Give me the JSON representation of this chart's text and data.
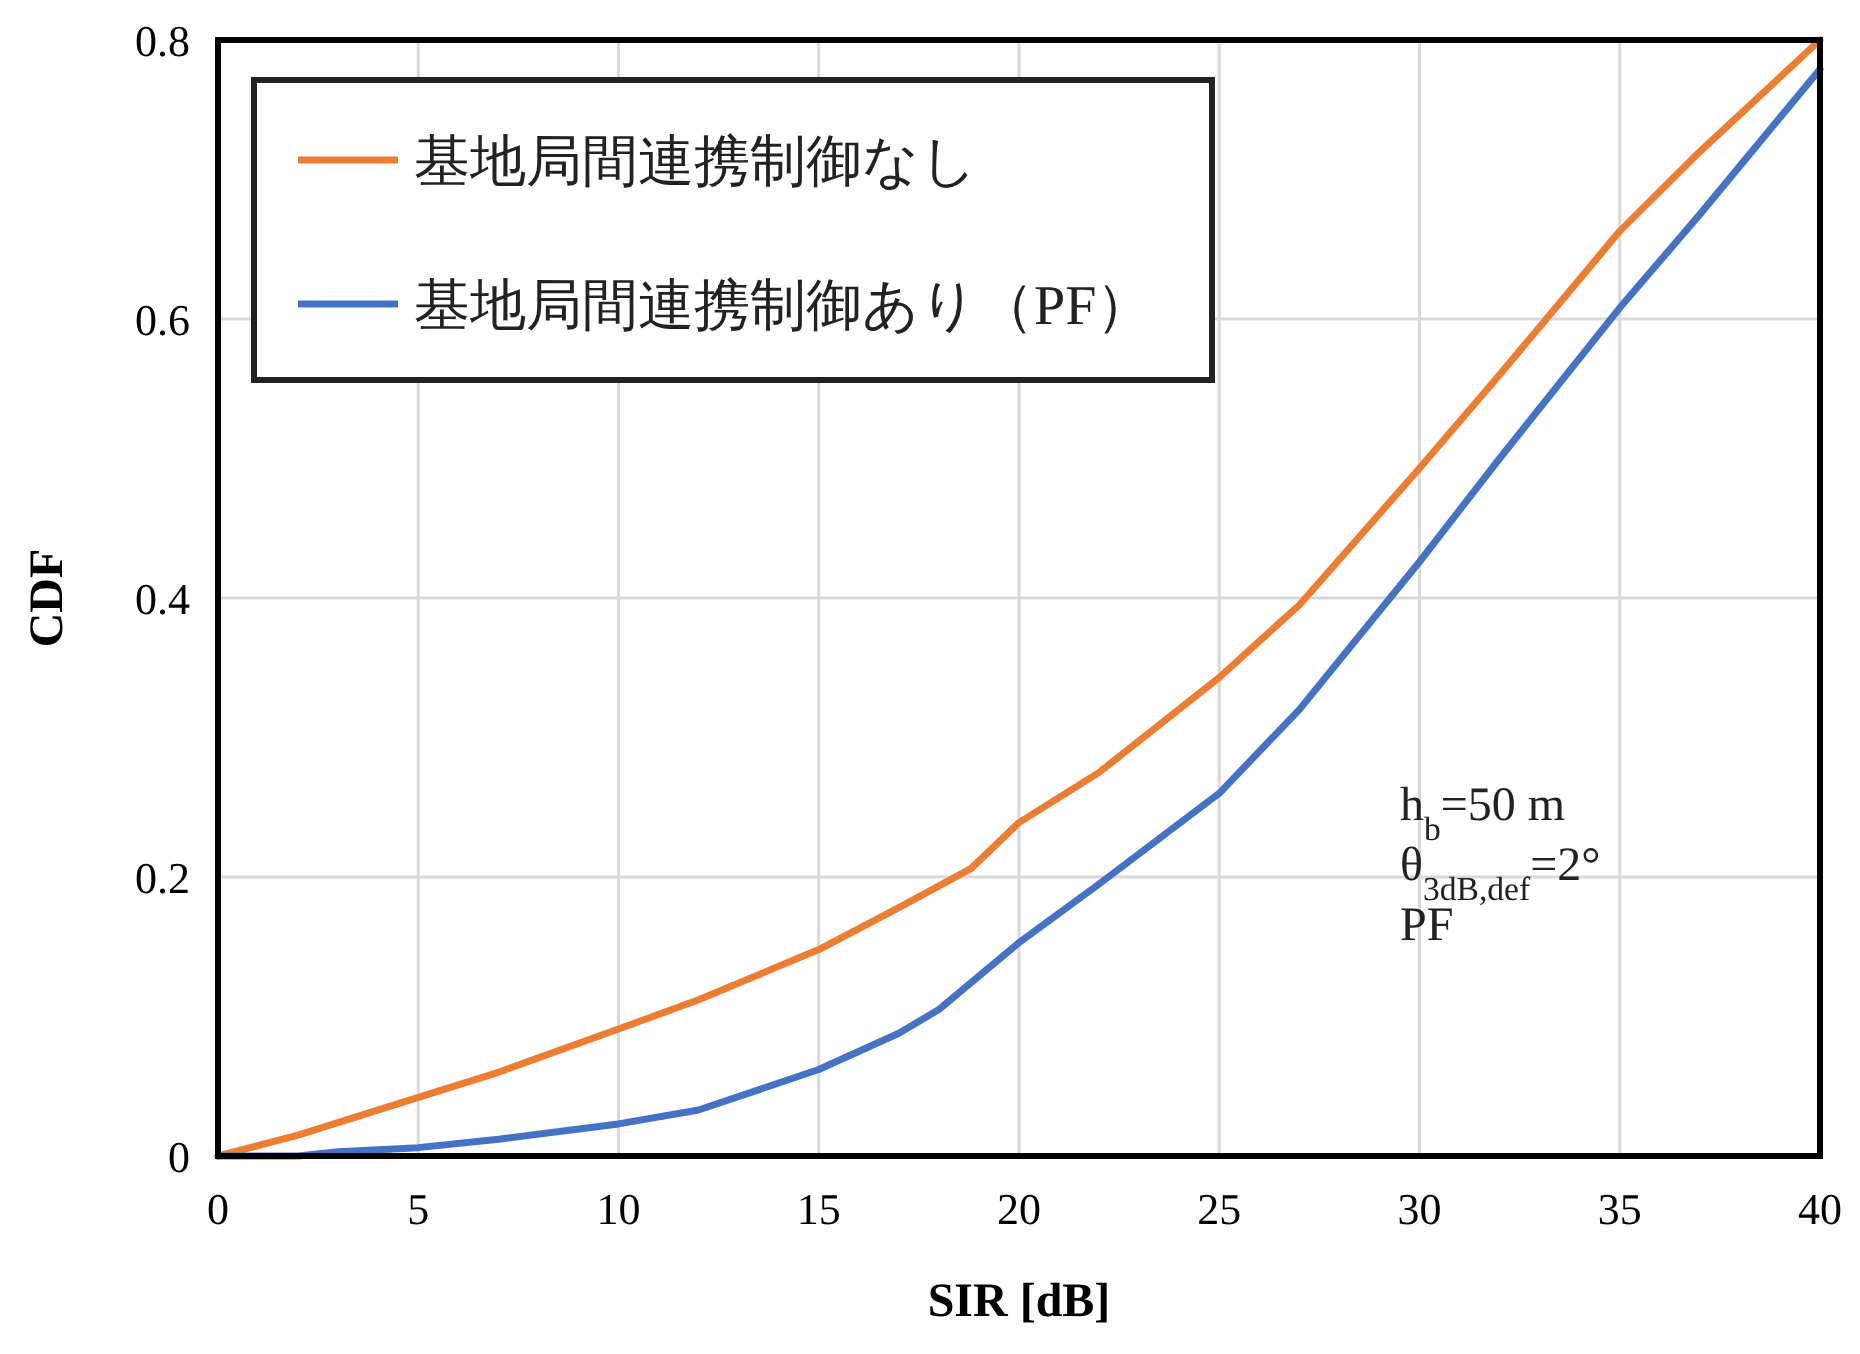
{
  "chart_data": {
    "type": "line",
    "xlabel": "SIR [dB]",
    "ylabel": "CDF",
    "xlim": [
      0,
      40
    ],
    "ylim": [
      0,
      0.8
    ],
    "xticks": [
      0,
      5,
      10,
      15,
      20,
      25,
      30,
      35,
      40
    ],
    "yticks": [
      0,
      0.2,
      0.4,
      0.6,
      0.8
    ],
    "grid": true,
    "legend": "top left",
    "line_style": "solid",
    "marker": "none",
    "annotations": [
      "h$_{b}$=50 m",
      "θ$_{3dB,def}$=2°",
      "PF"
    ],
    "series": [
      {
        "name": "基地局間連携制御なし",
        "color": "#ed7d31",
        "x": [
          0,
          2,
          5,
          7,
          10,
          12,
          15,
          17,
          18.8,
          20,
          22,
          25,
          27,
          30,
          32,
          35,
          37,
          40
        ],
        "values": [
          0,
          0.015,
          0.042,
          0.06,
          0.091,
          0.112,
          0.148,
          0.178,
          0.206,
          0.239,
          0.275,
          0.343,
          0.395,
          0.493,
          0.56,
          0.663,
          0.72,
          0.8
        ]
      },
      {
        "name": "基地局間連携制御あり（PF）",
        "color": "#4472c4",
        "x": [
          0,
          2,
          3,
          5,
          7,
          10,
          12,
          15,
          17,
          18,
          20,
          22,
          25,
          27,
          30,
          32,
          35,
          37,
          40
        ],
        "values": [
          0,
          0,
          0.003,
          0.006,
          0.012,
          0.023,
          0.033,
          0.062,
          0.088,
          0.105,
          0.153,
          0.195,
          0.26,
          0.32,
          0.426,
          0.5,
          0.608,
          0.675,
          0.779
        ]
      }
    ]
  }
}
